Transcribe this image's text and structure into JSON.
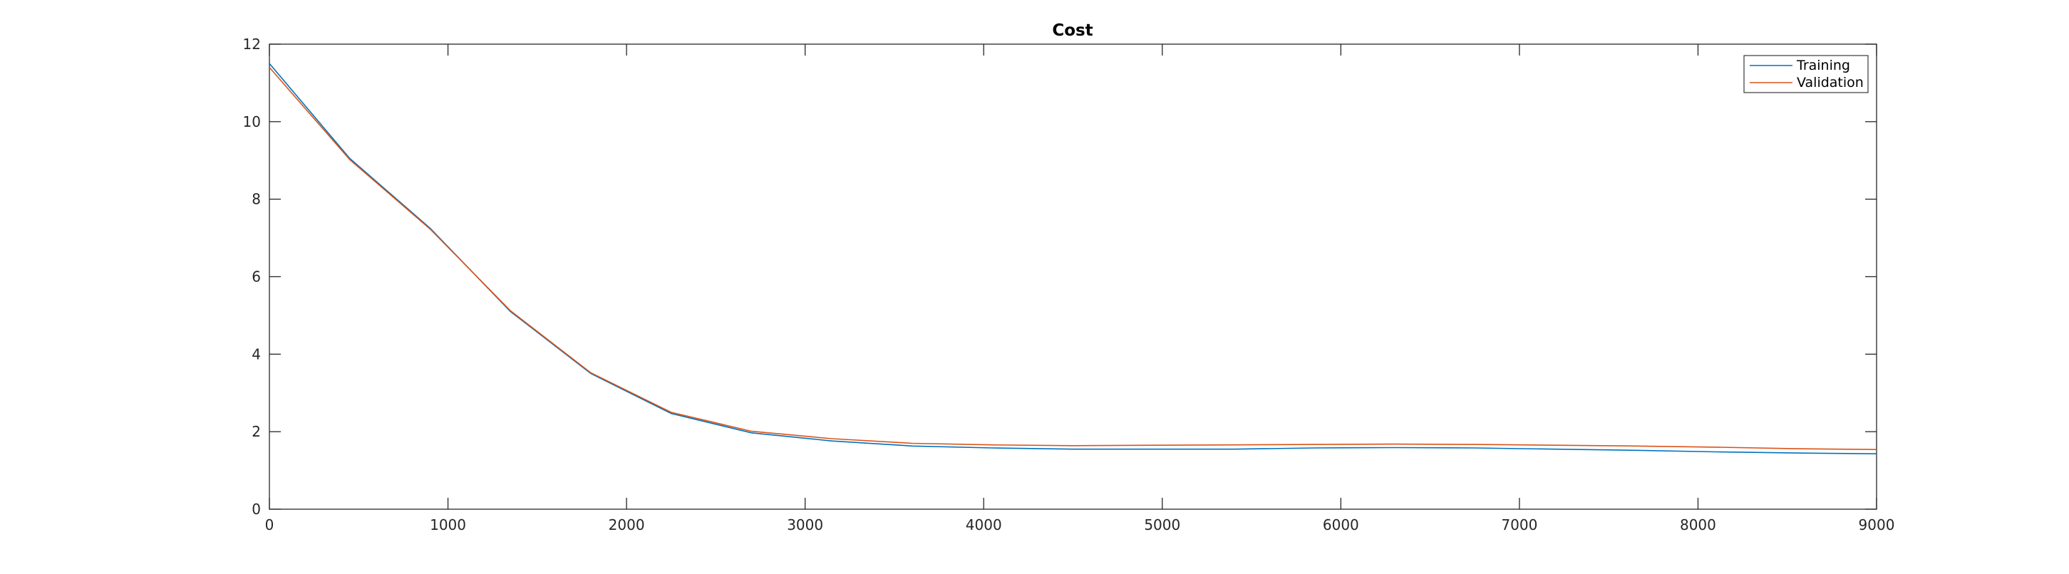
{
  "chart_data": {
    "type": "line",
    "title": "Cost",
    "xlabel": "",
    "ylabel": "",
    "xlim": [
      0,
      9000
    ],
    "ylim": [
      0,
      12
    ],
    "xticks": [
      0,
      1000,
      2000,
      3000,
      4000,
      5000,
      6000,
      7000,
      8000,
      9000
    ],
    "yticks": [
      0,
      2,
      4,
      6,
      8,
      10,
      12
    ],
    "grid": false,
    "legend_position": "top-right",
    "x": [
      0,
      450,
      900,
      1350,
      1800,
      2250,
      2700,
      3150,
      3600,
      4050,
      4500,
      4950,
      5400,
      5850,
      6300,
      6750,
      7200,
      7650,
      8100,
      8550,
      9000
    ],
    "series": [
      {
        "name": "Training",
        "color": "#0072BD",
        "values": [
          11.5,
          9.05,
          7.25,
          5.1,
          3.5,
          2.47,
          1.97,
          1.76,
          1.63,
          1.58,
          1.55,
          1.55,
          1.55,
          1.58,
          1.59,
          1.58,
          1.55,
          1.52,
          1.48,
          1.45,
          1.43
        ]
      },
      {
        "name": "Validation",
        "color": "#D95319",
        "values": [
          11.4,
          9.02,
          7.23,
          5.12,
          3.52,
          2.5,
          2.01,
          1.82,
          1.7,
          1.66,
          1.64,
          1.65,
          1.66,
          1.67,
          1.68,
          1.67,
          1.65,
          1.63,
          1.6,
          1.56,
          1.54
        ]
      }
    ]
  }
}
